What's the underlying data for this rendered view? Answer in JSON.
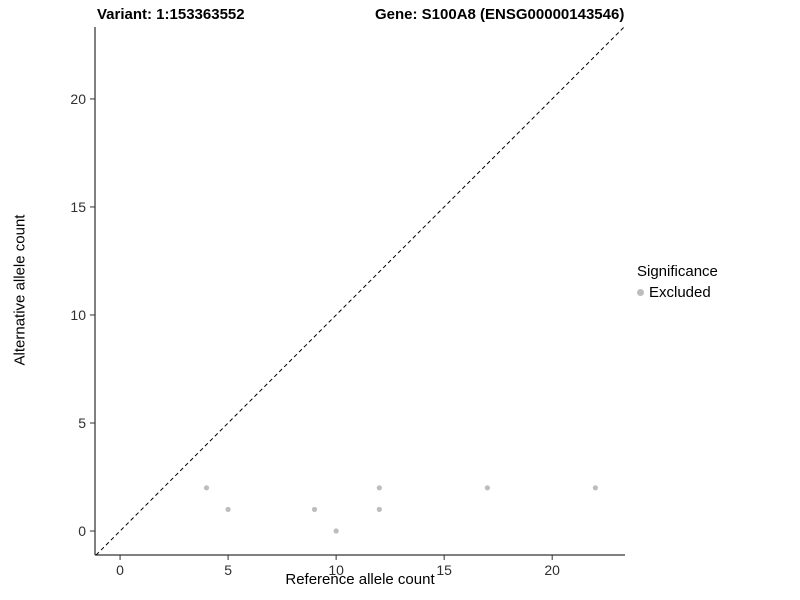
{
  "chart_data": {
    "type": "scatter",
    "title_left": "Variant: 1:153363552",
    "title_right": "Gene: S100A8 (ENSG00000143546)",
    "xlabel": "Reference allele count",
    "ylabel": "Alternative allele count",
    "xlim": [
      -1.16,
      23.37
    ],
    "ylim": [
      -1.11,
      23.33
    ],
    "x_ticks": [
      0,
      5,
      10,
      15,
      20
    ],
    "y_ticks": [
      0,
      5,
      10,
      15,
      20
    ],
    "grid": false,
    "identity_line": {
      "equation": "y = x",
      "style": "dashed",
      "color": "#000000"
    },
    "series": [
      {
        "name": "Excluded",
        "color": "#bdbdbd",
        "points": [
          {
            "x": 4,
            "y": 2
          },
          {
            "x": 5,
            "y": 1
          },
          {
            "x": 9,
            "y": 1
          },
          {
            "x": 10,
            "y": 0
          },
          {
            "x": 12,
            "y": 1
          },
          {
            "x": 12,
            "y": 2
          },
          {
            "x": 17,
            "y": 2
          },
          {
            "x": 22,
            "y": 2
          }
        ]
      }
    ],
    "legend": {
      "title": "Significance",
      "position": "right",
      "entries": [
        {
          "label": "Excluded",
          "color": "#bdbdbd"
        }
      ]
    }
  },
  "colors": {
    "background": "#ffffff",
    "axis": "#000000",
    "tick_label": "#303030",
    "point": "#bdbdbd",
    "text": "#000000"
  }
}
